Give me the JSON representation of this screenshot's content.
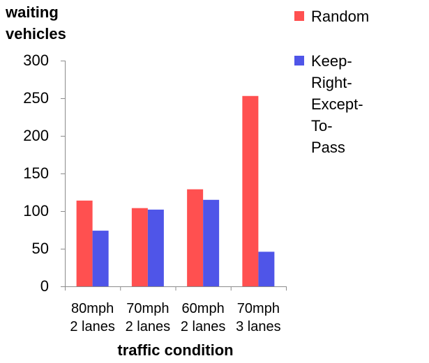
{
  "chart_data": {
    "type": "bar",
    "title": "",
    "ylabel": "waiting\nvehicles",
    "xlabel": "traffic condition",
    "categories": [
      "80mph\n2 lanes",
      "70mph\n2 lanes",
      "60mph\n2 lanes",
      "70mph\n3 lanes"
    ],
    "series": [
      {
        "name": "Random",
        "color": "#ff5050",
        "values": [
          114,
          104,
          129,
          253
        ]
      },
      {
        "name": "Keep-Right-\nExcept-To-Pass",
        "color": "#4f55e8",
        "values": [
          74,
          102,
          115,
          46
        ]
      }
    ],
    "ylim": [
      0,
      300
    ],
    "yticks": [
      0,
      50,
      100,
      150,
      200,
      250,
      300
    ],
    "grid": false,
    "legend": "right"
  }
}
